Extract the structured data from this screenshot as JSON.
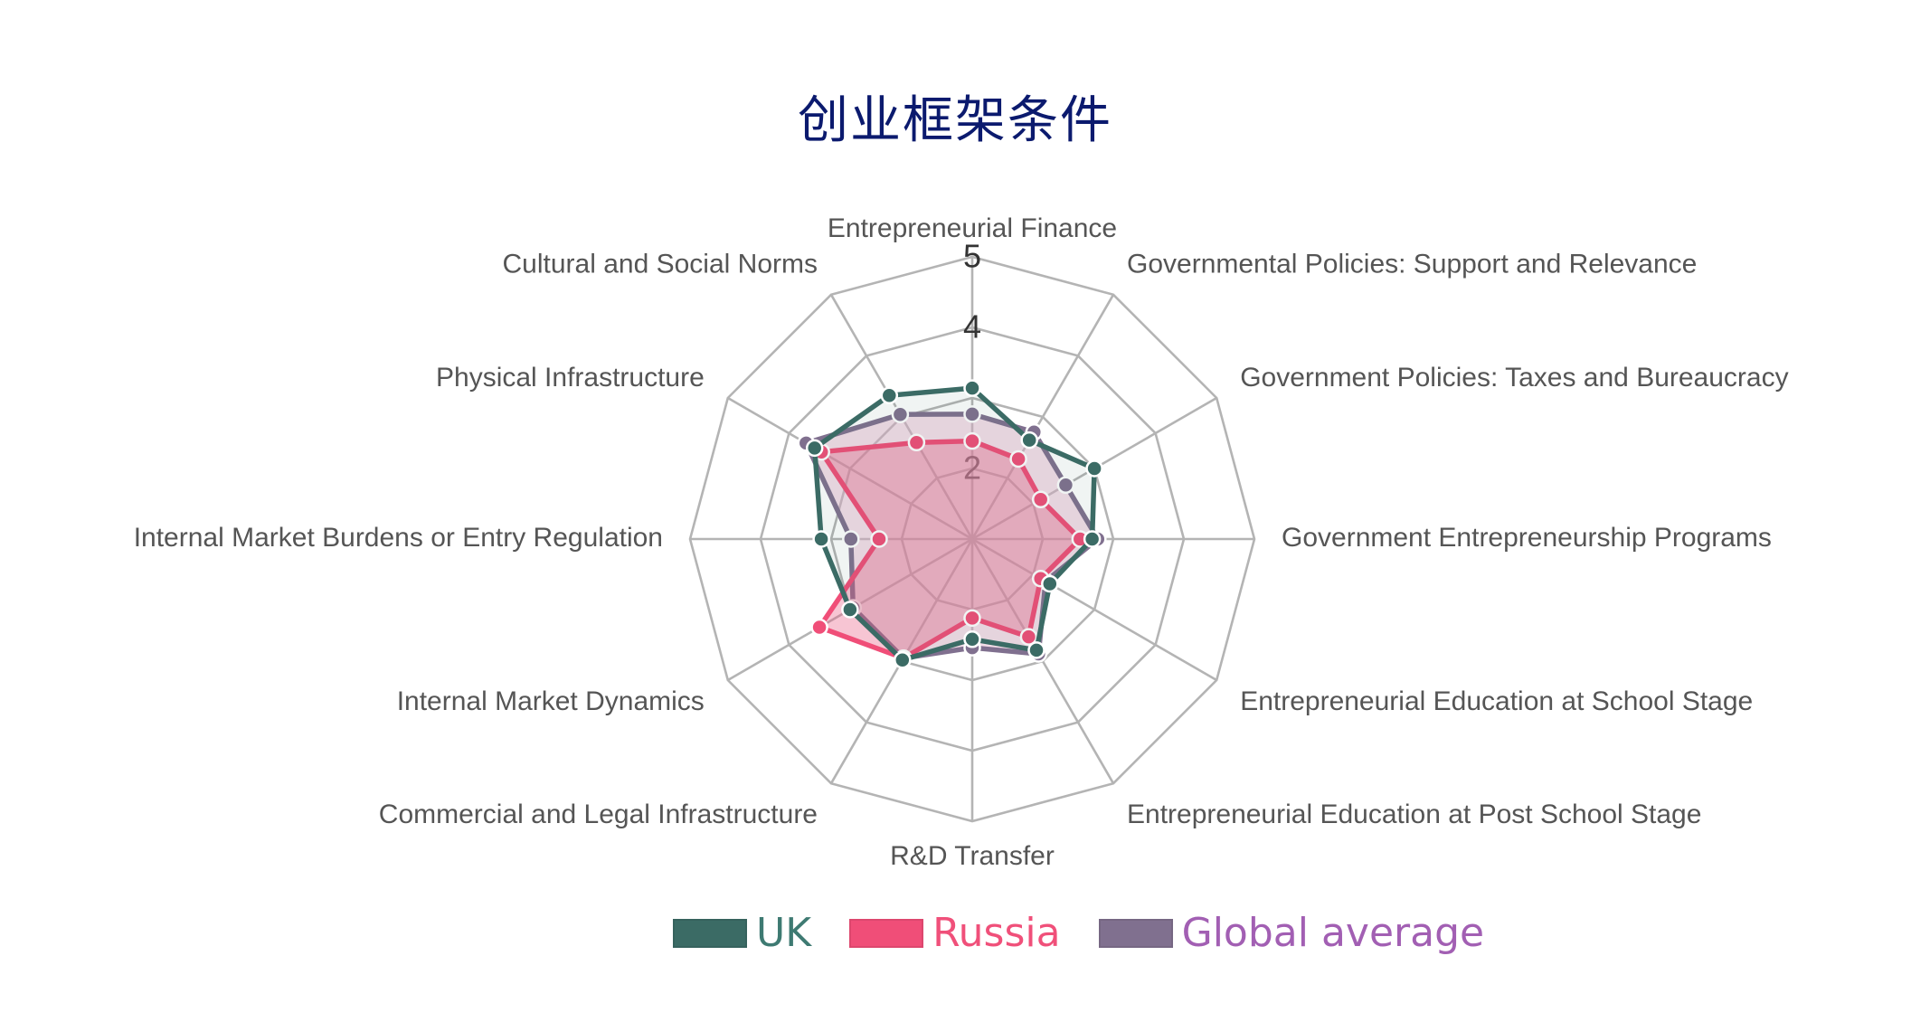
{
  "chart_data": {
    "type": "radar",
    "title": "创业框架条件",
    "categories": [
      "Entrepreneurial Finance",
      "Governmental Policies: Support and Relevance",
      "Government Policies: Taxes and Bureaucracy",
      "Government Entrepreneurship Programs",
      "Entrepreneurial Education at School Stage",
      "Entrepreneurial Education at Post School Stage",
      "R&D Transfer",
      "Commercial and Legal Infrastructure",
      "Internal Market Dynamics",
      "Internal Market Burdens or Entry Regulation",
      "Physical Infrastructure",
      "Cultural and Social Norms"
    ],
    "rlim": [
      1,
      5
    ],
    "rings": [
      2,
      3,
      4,
      5
    ],
    "ticks": [
      {
        "value": 2,
        "label": "2"
      },
      {
        "value": 4,
        "label": "4"
      },
      {
        "value": 5,
        "label": "5"
      }
    ],
    "grid": true,
    "legend_position": "bottom",
    "grid_color": "#b4b4b4",
    "label_color": "#555555",
    "tick_color": "#333333",
    "series": [
      {
        "name": "UK",
        "color": "#3b6b65",
        "fill": "rgba(60,110,100,0.08)",
        "label_color": "#3e7a72",
        "values": [
          3.14,
          2.62,
          3.0,
          2.7,
          2.27,
          2.82,
          2.42,
          2.98,
          3.0,
          3.14,
          3.58,
          3.35
        ]
      },
      {
        "name": "Russia",
        "color": "#f04e78",
        "fill": "rgba(232,90,130,0.35)",
        "label_color": "#f0507a",
        "values": [
          2.39,
          2.31,
          2.12,
          2.53,
          2.12,
          2.6,
          2.12,
          2.95,
          3.5,
          2.32,
          3.47,
          2.58
        ]
      },
      {
        "name": "Global average",
        "color": "#80708f",
        "fill": "rgba(230,180,205,0.45)",
        "label_color": "#a25fb3",
        "values": [
          2.77,
          2.75,
          2.53,
          2.78,
          2.2,
          2.88,
          2.54,
          2.95,
          2.95,
          2.72,
          3.72,
          3.04
        ]
      }
    ]
  }
}
